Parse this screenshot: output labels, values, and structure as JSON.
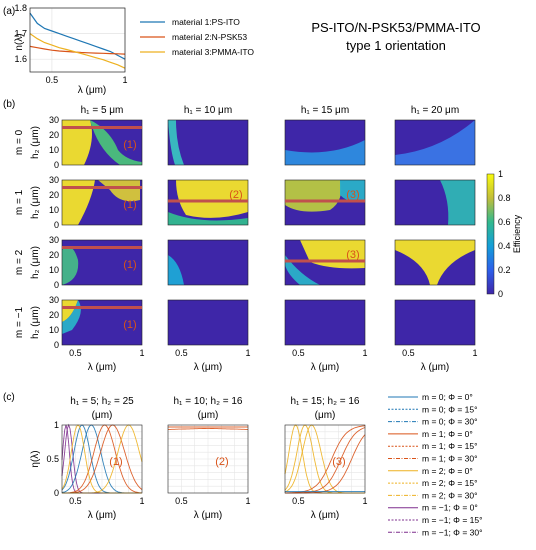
{
  "figure": {
    "title_line1": "PS-ITO/N-PSK53/PMMA-ITO",
    "title_line2": "type 1 orientation",
    "panel_labels": [
      "(a)",
      "(b)",
      "(c)"
    ]
  },
  "colors": {
    "material1": "#1f77b4",
    "material2": "#d95319",
    "material3": "#edb120",
    "red_line": "#c0504d",
    "annotation": "#d95319",
    "cb_low": "#3e26a8",
    "cb_high": "#f9fb0e"
  },
  "chart_data": [
    {
      "type": "line",
      "panel": "(a)",
      "xlabel": "λ (μm)",
      "ylabel": "n(λ)",
      "xlim": [
        0.35,
        1.0
      ],
      "ylim": [
        1.55,
        1.8
      ],
      "xticks": [
        0.5,
        1
      ],
      "yticks": [
        1.6,
        1.7,
        1.8
      ],
      "x": [
        0.35,
        0.4,
        0.45,
        0.5,
        0.55,
        0.6,
        0.65,
        0.7,
        0.75,
        0.8,
        0.85,
        0.9,
        0.95,
        1.0
      ],
      "series": [
        {
          "name": "material 1:PS-ITO",
          "color": "#1f77b4",
          "values": [
            1.78,
            1.74,
            1.72,
            1.71,
            1.7,
            1.69,
            1.68,
            1.67,
            1.66,
            1.65,
            1.64,
            1.63,
            1.615,
            1.6
          ]
        },
        {
          "name": "material 2:N-PSK53",
          "color": "#d95319",
          "values": [
            1.65,
            1.645,
            1.64,
            1.635,
            1.632,
            1.63,
            1.628,
            1.626,
            1.625,
            1.624,
            1.623,
            1.622,
            1.621,
            1.62
          ]
        },
        {
          "name": "material 3:PMMA-ITO",
          "color": "#edb120",
          "values": [
            1.7,
            1.68,
            1.665,
            1.655,
            1.645,
            1.638,
            1.63,
            1.622,
            1.614,
            1.606,
            1.598,
            1.588,
            1.578,
            1.565
          ]
        }
      ],
      "legend": "right"
    },
    {
      "type": "heatmap",
      "panel": "(b)",
      "column_titles": [
        "h₁ = 5 μm",
        "h₁ = 10 μm",
        "h₁ = 15 μm",
        "h₁ = 20 μm"
      ],
      "row_titles": [
        "m = 0",
        "m = 1",
        "m = 2",
        "m = −1"
      ],
      "ylabel": "h₂ (μm)",
      "xlabel": "λ (μm)",
      "xlim": [
        0.4,
        1.0
      ],
      "ylim": [
        0,
        30
      ],
      "xticks": [
        0.5,
        1
      ],
      "yticks": [
        0,
        10,
        20,
        30
      ],
      "colorbar": {
        "label": "Efficiency",
        "ticks": [
          0,
          0.2,
          0.4,
          0.6,
          0.8,
          1
        ]
      },
      "annotations": [
        {
          "row": 0,
          "col": 0,
          "text": "(1)",
          "line_h2": 25
        },
        {
          "row": 1,
          "col": 0,
          "text": "(1)",
          "line_h2": 25
        },
        {
          "row": 1,
          "col": 1,
          "text": "(2)",
          "line_h2": 16
        },
        {
          "row": 1,
          "col": 2,
          "text": "(3)",
          "line_h2": 16
        },
        {
          "row": 2,
          "col": 0,
          "text": "(1)",
          "line_h2": 25
        },
        {
          "row": 2,
          "col": 2,
          "text": "(3)",
          "line_h2": 16
        },
        {
          "row": 3,
          "col": 0,
          "text": "(1)",
          "line_h2": 25
        }
      ]
    },
    {
      "type": "line",
      "panel": "(c)",
      "subplot_titles": [
        {
          "line1": "h₁ = 5; h₂ = 25",
          "line2": "(μm)"
        },
        {
          "line1": "h₁ = 10; h₂ = 16",
          "line2": "(μm)"
        },
        {
          "line1": "h₁ = 15; h₂ = 16",
          "line2": "(μm)"
        }
      ],
      "annotations": [
        "(1)",
        "(2)",
        "(3)"
      ],
      "xlabel": "λ (μm)",
      "ylabel": "η(λ)",
      "xlim": [
        0.4,
        1.0
      ],
      "ylim": [
        0,
        1
      ],
      "xticks": [
        0.5,
        1
      ],
      "yticks": [
        0,
        0.5,
        1
      ],
      "legend_entries": [
        "m = 0; Φ = 0°",
        "m = 0; Φ = 15°",
        "m = 0; Φ = 30°",
        "m = 1; Φ = 0°",
        "m = 1; Φ = 15°",
        "m = 1; Φ = 30°",
        "m = 2; Φ = 0°",
        "m = 2; Φ = 15°",
        "m = 2; Φ = 30°",
        "m = −1; Φ = 0°",
        "m = −1; Φ = 15°",
        "m = −1; Φ = 30°"
      ],
      "legend_colors": [
        "#1f77b4",
        "#1f77b4",
        "#1f77b4",
        "#d95319",
        "#d95319",
        "#d95319",
        "#edb120",
        "#edb120",
        "#edb120",
        "#7e2f8e",
        "#7e2f8e",
        "#7e2f8e"
      ],
      "legend": "right"
    }
  ]
}
